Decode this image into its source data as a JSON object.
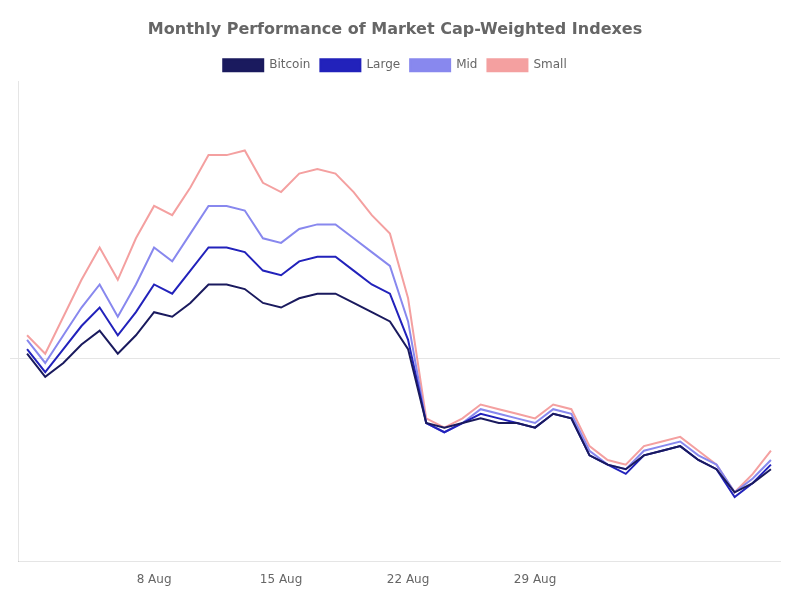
{
  "chart_data": {
    "type": "line",
    "title": "Monthly Performance of Market Cap-Weighted Indexes",
    "categories": [
      null,
      null,
      null,
      null,
      null,
      null,
      null,
      "8 Aug",
      null,
      null,
      null,
      null,
      null,
      null,
      "15 Aug",
      null,
      null,
      null,
      null,
      null,
      null,
      "22 Aug",
      null,
      null,
      null,
      null,
      null,
      null,
      "29 Aug",
      null,
      null,
      null,
      null,
      null,
      null,
      null,
      null,
      null,
      null,
      null,
      null,
      null
    ],
    "series": [
      {
        "name": "Bitcoin",
        "color": "#1a1a5e",
        "values": [
          0.5,
          -2.0,
          -0.5,
          1.5,
          3.0,
          0.5,
          2.5,
          5.0,
          4.5,
          6.0,
          8.0,
          8.0,
          7.5,
          6.0,
          5.5,
          6.5,
          7.0,
          7.0,
          6.0,
          5.0,
          4.0,
          1.0,
          -7.0,
          -7.5,
          -7.0,
          -6.5,
          -7.0,
          -7.0,
          -7.5,
          -6.0,
          -6.5,
          -10.5,
          -11.5,
          -12.0,
          -10.5,
          -10.0,
          -9.5,
          -11.0,
          -12.0,
          -14.5,
          -13.5,
          -12.0
        ]
      },
      {
        "name": "Large",
        "color": "#2222bb",
        "values": [
          1.0,
          -1.5,
          1.0,
          3.5,
          5.5,
          2.5,
          5.0,
          8.0,
          7.0,
          9.5,
          12.0,
          12.0,
          11.5,
          9.5,
          9.0,
          10.5,
          11.0,
          11.0,
          9.5,
          8.0,
          7.0,
          2.0,
          -7.0,
          -8.0,
          -7.0,
          -6.0,
          -6.5,
          -7.0,
          -7.5,
          -6.0,
          -6.5,
          -10.5,
          -11.5,
          -12.5,
          -10.5,
          -10.0,
          -9.5,
          -11.0,
          -12.0,
          -15.0,
          -13.5,
          -11.5
        ]
      },
      {
        "name": "Mid",
        "color": "#8888ee",
        "values": [
          2.0,
          -0.5,
          2.5,
          5.5,
          8.0,
          4.5,
          8.0,
          12.0,
          10.5,
          13.5,
          16.5,
          16.5,
          16.0,
          13.0,
          12.5,
          14.0,
          14.5,
          14.5,
          13.0,
          11.5,
          10.0,
          4.0,
          -7.0,
          -8.0,
          -7.0,
          -5.5,
          -6.0,
          -6.5,
          -7.0,
          -5.5,
          -6.0,
          -10.0,
          -11.5,
          -12.0,
          -10.0,
          -9.5,
          -9.0,
          -10.5,
          -11.5,
          -14.5,
          -13.0,
          -11.0
        ]
      },
      {
        "name": "Small",
        "color": "#f4a0a0",
        "values": [
          2.5,
          0.5,
          4.5,
          8.5,
          12.0,
          8.5,
          13.0,
          16.5,
          15.5,
          18.5,
          22.0,
          22.0,
          22.5,
          19.0,
          18.0,
          20.0,
          20.5,
          20.0,
          18.0,
          15.5,
          13.5,
          6.5,
          -6.5,
          -7.5,
          -6.5,
          -5.0,
          -5.5,
          -6.0,
          -6.5,
          -5.0,
          -5.5,
          -9.5,
          -11.0,
          -11.5,
          -9.5,
          -9.0,
          -8.5,
          -10.0,
          -11.5,
          -14.5,
          -12.5,
          -10.0
        ]
      }
    ],
    "ylim": [
      -22,
      30
    ],
    "yticks": [
      0
    ],
    "grid": "y",
    "tick_labels": "x",
    "legend": "top",
    "marker": "none",
    "line_style": "solid"
  }
}
